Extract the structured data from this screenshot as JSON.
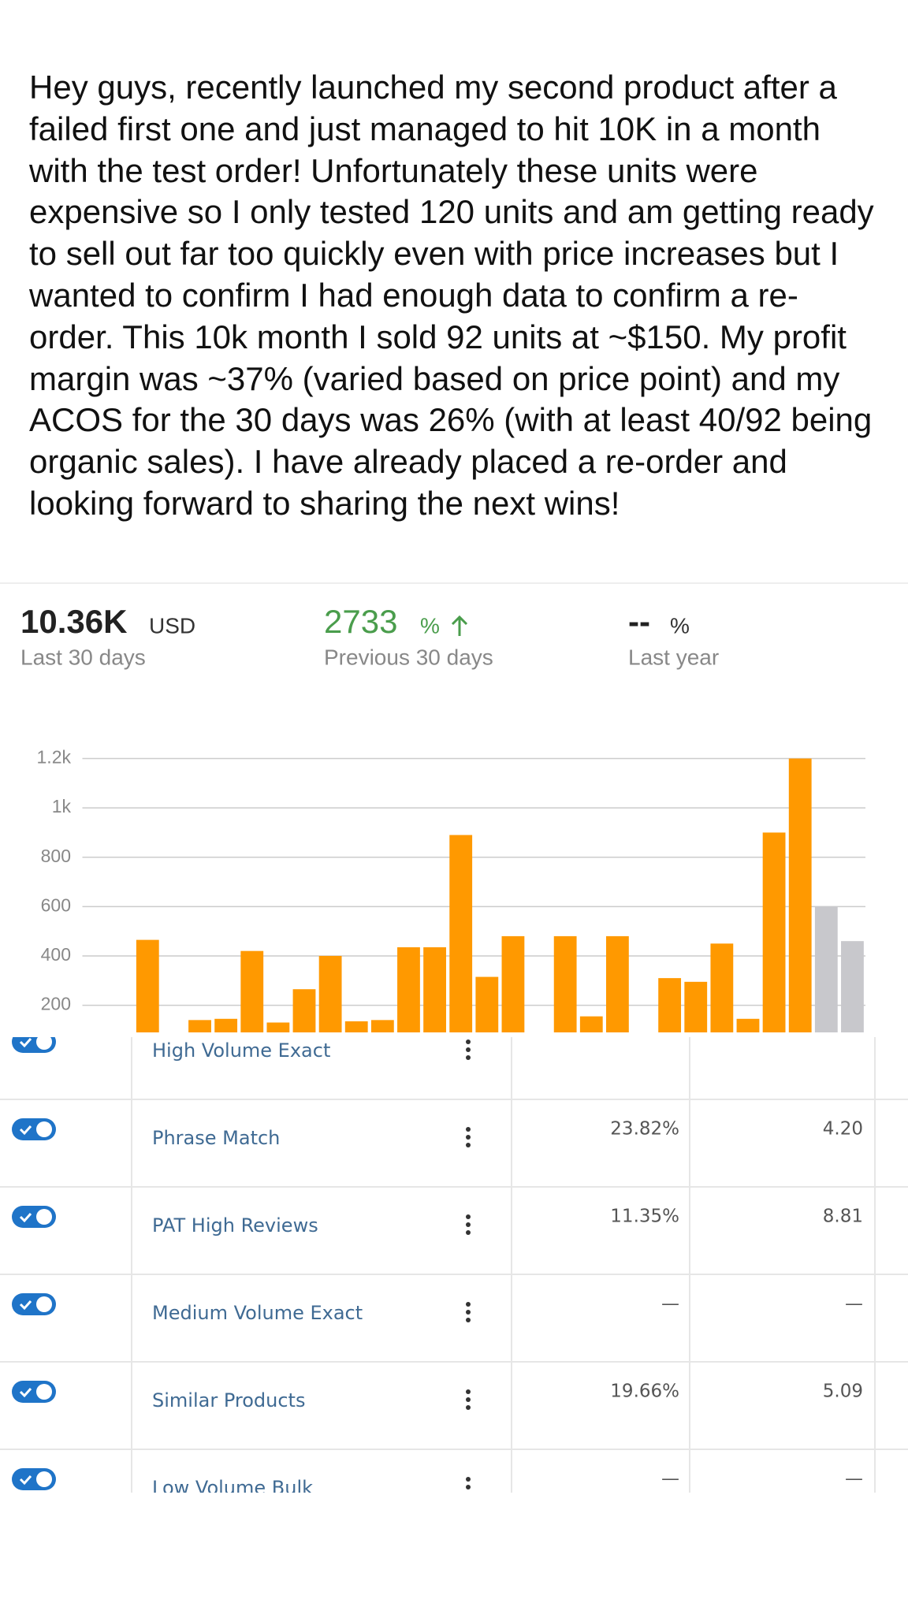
{
  "post": {
    "text": "Hey guys, recently launched my second product after a failed first one and just managed to hit 10K in a month with the test order! Unfortunately these units were expensive so I only tested 120 units and am getting ready to sell out far too quickly even with price increases but I wanted to confirm I had enough data to confirm a re-order. This 10k month I sold 92 units at ~$150. My profit margin was ~37% (varied based on price point) and my ACOS for the 30 days was 26% (with at least 40/92 being organic sales). I have already placed a re-order and looking forward to sharing the next wins!"
  },
  "stats": [
    {
      "value": "10.36K",
      "unit": "USD",
      "label": "Last 30 days"
    },
    {
      "value": "2733",
      "unit": "%",
      "label": "Previous 30 days"
    },
    {
      "value": "--",
      "unit": "%",
      "label": "Last year"
    }
  ],
  "chart_data": {
    "type": "bar",
    "categories": [
      null,
      null,
      null,
      null,
      null,
      null,
      null,
      null,
      null,
      null,
      null,
      null,
      null,
      null,
      null,
      null,
      null,
      null,
      null,
      null,
      null,
      null,
      null,
      null,
      null,
      null,
      null,
      null,
      null,
      null
    ],
    "values": [
      null,
      null,
      465,
      null,
      140,
      145,
      420,
      130,
      265,
      400,
      135,
      140,
      435,
      435,
      890,
      315,
      480,
      null,
      480,
      155,
      480,
      null,
      310,
      295,
      450,
      145,
      900,
      1200,
      600,
      460
    ],
    "colors": [
      "#ff9900",
      "#ff9900",
      "#ff9900",
      "#ff9900",
      "#ff9900",
      "#ff9900",
      "#ff9900",
      "#ff9900",
      "#ff9900",
      "#ff9900",
      "#ff9900",
      "#ff9900",
      "#ff9900",
      "#ff9900",
      "#ff9900",
      "#ff9900",
      "#ff9900",
      "#ff9900",
      "#ff9900",
      "#ff9900",
      "#ff9900",
      "#ff9900",
      "#ff9900",
      "#ff9900",
      "#ff9900",
      "#ff9900",
      "#ff9900",
      "#ff9900",
      "#c8c8cc",
      "#c8c8cc"
    ],
    "ylim": [
      90,
      1200
    ],
    "yticks": [
      200,
      400,
      600,
      800,
      {
        "value": 1000,
        "label": "1k"
      },
      {
        "value": 1200,
        "label": "1.2k"
      }
    ],
    "grid": true
  },
  "table": {
    "rows": [
      [
        "High Volume Exact",
        null,
        null
      ],
      [
        "Phrase Match",
        "23.82%",
        "4.20"
      ],
      [
        "PAT High Reviews",
        "11.35%",
        "8.81"
      ],
      [
        "Medium Volume Exact",
        "—",
        "—"
      ],
      [
        "Similar Products",
        "19.66%",
        "5.09"
      ],
      [
        "Low Volume Bulk",
        "—",
        "—"
      ]
    ]
  }
}
